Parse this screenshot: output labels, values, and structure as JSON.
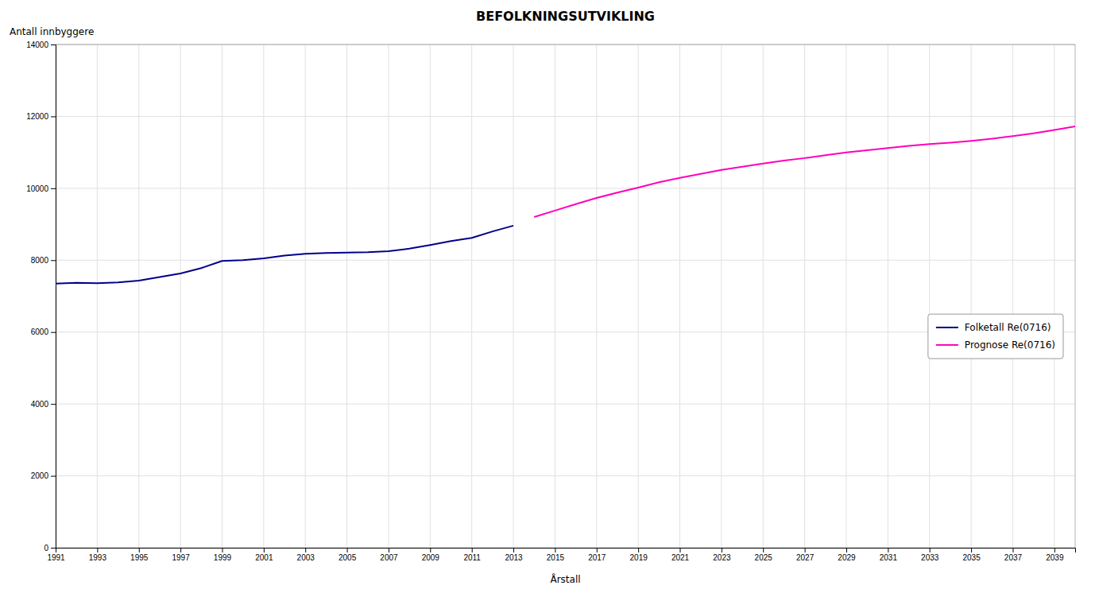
{
  "chart_data": {
    "type": "line",
    "title": "BEFOLKNINGSUTVIKLING",
    "ylabel": "Antall innbyggere",
    "xlabel": "Årstall",
    "series": [
      {
        "name": "Folketall Re(0716)",
        "color": "#00008B",
        "x": [
          1991,
          1992,
          1993,
          1994,
          1995,
          1996,
          1997,
          1998,
          1999,
          2000,
          2001,
          2002,
          2003,
          2004,
          2005,
          2006,
          2007,
          2008,
          2009,
          2010,
          2011,
          2012,
          2013
        ],
        "values": [
          7350,
          7370,
          7360,
          7380,
          7430,
          7530,
          7630,
          7780,
          7980,
          8000,
          8050,
          8130,
          8180,
          8200,
          8210,
          8220,
          8250,
          8320,
          8420,
          8530,
          8620,
          8800,
          8960
        ]
      },
      {
        "name": "Prognose Re(0716)",
        "color": "#FF00BB",
        "x": [
          2014,
          2015,
          2016,
          2017,
          2018,
          2019,
          2020,
          2021,
          2022,
          2023,
          2024,
          2025,
          2026,
          2027,
          2028,
          2029,
          2030,
          2031,
          2032,
          2033,
          2034,
          2035,
          2036,
          2037,
          2038,
          2039,
          2040
        ],
        "values": [
          9200,
          9380,
          9560,
          9730,
          9880,
          10020,
          10170,
          10290,
          10400,
          10510,
          10600,
          10690,
          10770,
          10840,
          10920,
          11000,
          11060,
          11120,
          11180,
          11230,
          11270,
          11320,
          11380,
          11450,
          11530,
          11620,
          11720
        ]
      }
    ],
    "xlim": [
      1991,
      2040
    ],
    "xticks": [
      1991,
      1993,
      1995,
      1997,
      1999,
      2001,
      2003,
      2005,
      2007,
      2009,
      2011,
      2013,
      2015,
      2017,
      2019,
      2021,
      2023,
      2025,
      2027,
      2029,
      2031,
      2033,
      2035,
      2037,
      2039
    ],
    "ylim": [
      0,
      14000
    ],
    "yticks": [
      0,
      2000,
      4000,
      6000,
      8000,
      10000,
      12000,
      14000
    ],
    "grid": true,
    "legend": "right"
  }
}
